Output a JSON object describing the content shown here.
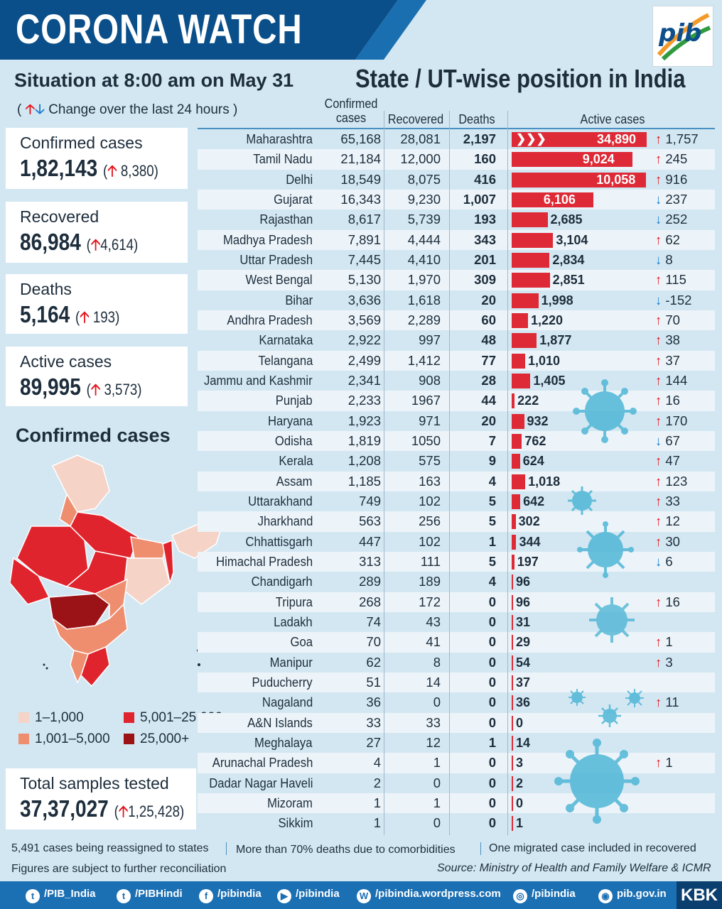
{
  "header": {
    "title": "CORONA WATCH",
    "logo_text": "pib"
  },
  "situation": "Situation at 8:00 am on May 31",
  "change_note": "Change over the last 24 hours",
  "state_title": "State / UT-wise position in India",
  "summary": [
    {
      "label": "Confirmed cases",
      "value": "1,82,143",
      "change": "8,380",
      "direction": "up"
    },
    {
      "label": "Recovered",
      "value": "86,984",
      "change": "4,614",
      "direction": "up"
    },
    {
      "label": "Deaths",
      "value": "5,164",
      "change": "193",
      "direction": "up"
    },
    {
      "label": "Active cases",
      "value": "89,995",
      "change": "3,573",
      "direction": "up"
    }
  ],
  "map": {
    "title": "Confirmed cases",
    "legend": [
      {
        "label": "1–1,000",
        "color": "#f5d3c6"
      },
      {
        "label": "5,001–25,000",
        "color": "#e0242d"
      },
      {
        "label": "1,001–5,000",
        "color": "#ef8d6f"
      },
      {
        "label": "25,000+",
        "color": "#9b1217"
      }
    ]
  },
  "samples": {
    "label": "Total samples tested",
    "value": "37,37,027",
    "change": "1,25,428",
    "direction": "up"
  },
  "chart_data": {
    "type": "table",
    "columns": [
      "Confirmed cases",
      "Recovered",
      "Deaths",
      "Active cases"
    ],
    "rows": [
      {
        "state": "Maharashtra",
        "confirmed": "65,168",
        "recovered": "28,081",
        "deaths": "2,197",
        "active": "34,890",
        "active_value": 34890,
        "change": "1,757",
        "dir": "up"
      },
      {
        "state": "Tamil Nadu",
        "confirmed": "21,184",
        "recovered": "12,000",
        "deaths": "160",
        "active": "9,024",
        "active_value": 9024,
        "change": "245",
        "dir": "up"
      },
      {
        "state": "Delhi",
        "confirmed": "18,549",
        "recovered": "8,075",
        "deaths": "416",
        "active": "10,058",
        "active_value": 10058,
        "change": "916",
        "dir": "up"
      },
      {
        "state": "Gujarat",
        "confirmed": "16,343",
        "recovered": "9,230",
        "deaths": "1,007",
        "active": "6,106",
        "active_value": 6106,
        "change": "237",
        "dir": "down"
      },
      {
        "state": "Rajasthan",
        "confirmed": "8,617",
        "recovered": "5,739",
        "deaths": "193",
        "active": "2,685",
        "active_value": 2685,
        "change": "252",
        "dir": "down"
      },
      {
        "state": "Madhya Pradesh",
        "confirmed": "7,891",
        "recovered": "4,444",
        "deaths": "343",
        "active": "3,104",
        "active_value": 3104,
        "change": "62",
        "dir": "up"
      },
      {
        "state": "Uttar Pradesh",
        "confirmed": "7,445",
        "recovered": "4,410",
        "deaths": "201",
        "active": "2,834",
        "active_value": 2834,
        "change": "8",
        "dir": "down"
      },
      {
        "state": "West Bengal",
        "confirmed": "5,130",
        "recovered": "1,970",
        "deaths": "309",
        "active": "2,851",
        "active_value": 2851,
        "change": "115",
        "dir": "up"
      },
      {
        "state": "Bihar",
        "confirmed": "3,636",
        "recovered": "1,618",
        "deaths": "20",
        "active": "1,998",
        "active_value": 1998,
        "change": "-152",
        "dir": "down"
      },
      {
        "state": "Andhra Pradesh",
        "confirmed": "3,569",
        "recovered": "2,289",
        "deaths": "60",
        "active": "1,220",
        "active_value": 1220,
        "change": "70",
        "dir": "up"
      },
      {
        "state": "Karnataka",
        "confirmed": "2,922",
        "recovered": "997",
        "deaths": "48",
        "active": "1,877",
        "active_value": 1877,
        "change": "38",
        "dir": "up"
      },
      {
        "state": "Telangana",
        "confirmed": "2,499",
        "recovered": "1,412",
        "deaths": "77",
        "active": "1,010",
        "active_value": 1010,
        "change": "37",
        "dir": "up"
      },
      {
        "state": "Jammu and Kashmir",
        "confirmed": "2,341",
        "recovered": "908",
        "deaths": "28",
        "active": "1,405",
        "active_value": 1405,
        "change": "144",
        "dir": "up"
      },
      {
        "state": "Punjab",
        "confirmed": "2,233",
        "recovered": "1967",
        "deaths": "44",
        "active": "222",
        "active_value": 222,
        "change": "16",
        "dir": "up"
      },
      {
        "state": "Haryana",
        "confirmed": "1,923",
        "recovered": "971",
        "deaths": "20",
        "active": "932",
        "active_value": 932,
        "change": "170",
        "dir": "up"
      },
      {
        "state": "Odisha",
        "confirmed": "1,819",
        "recovered": "1050",
        "deaths": "7",
        "active": "762",
        "active_value": 762,
        "change": "67",
        "dir": "down"
      },
      {
        "state": "Kerala",
        "confirmed": "1,208",
        "recovered": "575",
        "deaths": "9",
        "active": "624",
        "active_value": 624,
        "change": "47",
        "dir": "up"
      },
      {
        "state": "Assam",
        "confirmed": "1,185",
        "recovered": "163",
        "deaths": "4",
        "active": "1,018",
        "active_value": 1018,
        "change": "123",
        "dir": "up"
      },
      {
        "state": "Uttarakhand",
        "confirmed": "749",
        "recovered": "102",
        "deaths": "5",
        "active": "642",
        "active_value": 642,
        "change": "33",
        "dir": "up"
      },
      {
        "state": "Jharkhand",
        "confirmed": "563",
        "recovered": "256",
        "deaths": "5",
        "active": "302",
        "active_value": 302,
        "change": "12",
        "dir": "up"
      },
      {
        "state": "Chhattisgarh",
        "confirmed": "447",
        "recovered": "102",
        "deaths": "1",
        "active": "344",
        "active_value": 344,
        "change": "30",
        "dir": "up"
      },
      {
        "state": "Himachal Pradesh",
        "confirmed": "313",
        "recovered": "111",
        "deaths": "5",
        "active": "197",
        "active_value": 197,
        "change": "6",
        "dir": "down"
      },
      {
        "state": "Chandigarh",
        "confirmed": "289",
        "recovered": "189",
        "deaths": "4",
        "active": "96",
        "active_value": 96,
        "change": "",
        "dir": ""
      },
      {
        "state": "Tripura",
        "confirmed": "268",
        "recovered": "172",
        "deaths": "0",
        "active": "96",
        "active_value": 96,
        "change": "16",
        "dir": "up"
      },
      {
        "state": "Ladakh",
        "confirmed": "74",
        "recovered": "43",
        "deaths": "0",
        "active": "31",
        "active_value": 31,
        "change": "",
        "dir": ""
      },
      {
        "state": "Goa",
        "confirmed": "70",
        "recovered": "41",
        "deaths": "0",
        "active": "29",
        "active_value": 29,
        "change": "1",
        "dir": "up"
      },
      {
        "state": "Manipur",
        "confirmed": "62",
        "recovered": "8",
        "deaths": "0",
        "active": "54",
        "active_value": 54,
        "change": "3",
        "dir": "up"
      },
      {
        "state": "Puducherry",
        "confirmed": "51",
        "recovered": "14",
        "deaths": "0",
        "active": "37",
        "active_value": 37,
        "change": "",
        "dir": ""
      },
      {
        "state": "Nagaland",
        "confirmed": "36",
        "recovered": "0",
        "deaths": "0",
        "active": "36",
        "active_value": 36,
        "change": "11",
        "dir": "up"
      },
      {
        "state": "A&N Islands",
        "confirmed": "33",
        "recovered": "33",
        "deaths": "0",
        "active": "0",
        "active_value": 0,
        "change": "",
        "dir": ""
      },
      {
        "state": "Meghalaya",
        "confirmed": "27",
        "recovered": "12",
        "deaths": "1",
        "active": "14",
        "active_value": 14,
        "change": "",
        "dir": ""
      },
      {
        "state": "Arunachal Pradesh",
        "confirmed": "4",
        "recovered": "1",
        "deaths": "0",
        "active": "3",
        "active_value": 3,
        "change": "1",
        "dir": "up"
      },
      {
        "state": "Dadar Nagar Haveli",
        "confirmed": "2",
        "recovered": "0",
        "deaths": "0",
        "active": "2",
        "active_value": 2,
        "change": "",
        "dir": ""
      },
      {
        "state": "Mizoram",
        "confirmed": "1",
        "recovered": "1",
        "deaths": "0",
        "active": "0",
        "active_value": 0,
        "change": "",
        "dir": ""
      },
      {
        "state": "Sikkim",
        "confirmed": "1",
        "recovered": "0",
        "deaths": "0",
        "active": "1",
        "active_value": 1,
        "change": "",
        "dir": ""
      }
    ]
  },
  "footer": {
    "note1": "5,491 cases being reassigned to states",
    "note2": "More than 70% deaths due to comorbidities",
    "note3": "One migrated case included in recovered",
    "note4": "Figures are subject to further reconciliation",
    "source": "Source: Ministry of Health and Family Welfare & ICMR"
  },
  "social": [
    {
      "icon": "twitter-icon",
      "glyph": "t",
      "text": "/PIB_India"
    },
    {
      "icon": "twitter-icon",
      "glyph": "t",
      "text": "/PIBHindi"
    },
    {
      "icon": "facebook-icon",
      "glyph": "f",
      "text": "/pibindia"
    },
    {
      "icon": "youtube-icon",
      "glyph": "▶",
      "text": "/pibindia"
    },
    {
      "icon": "wordpress-icon",
      "glyph": "W",
      "text": "/pibindia.wordpress.com"
    },
    {
      "icon": "instagram-icon",
      "glyph": "◎",
      "text": "/pibindia"
    },
    {
      "icon": "globe-icon",
      "glyph": "◉",
      "text": "pib.gov.in"
    }
  ],
  "kbk": "KBK",
  "colors": {
    "bar": "#dd2a36",
    "up": "#e3141b",
    "down": "#1b7fd1",
    "header": "#0b4f8a"
  }
}
